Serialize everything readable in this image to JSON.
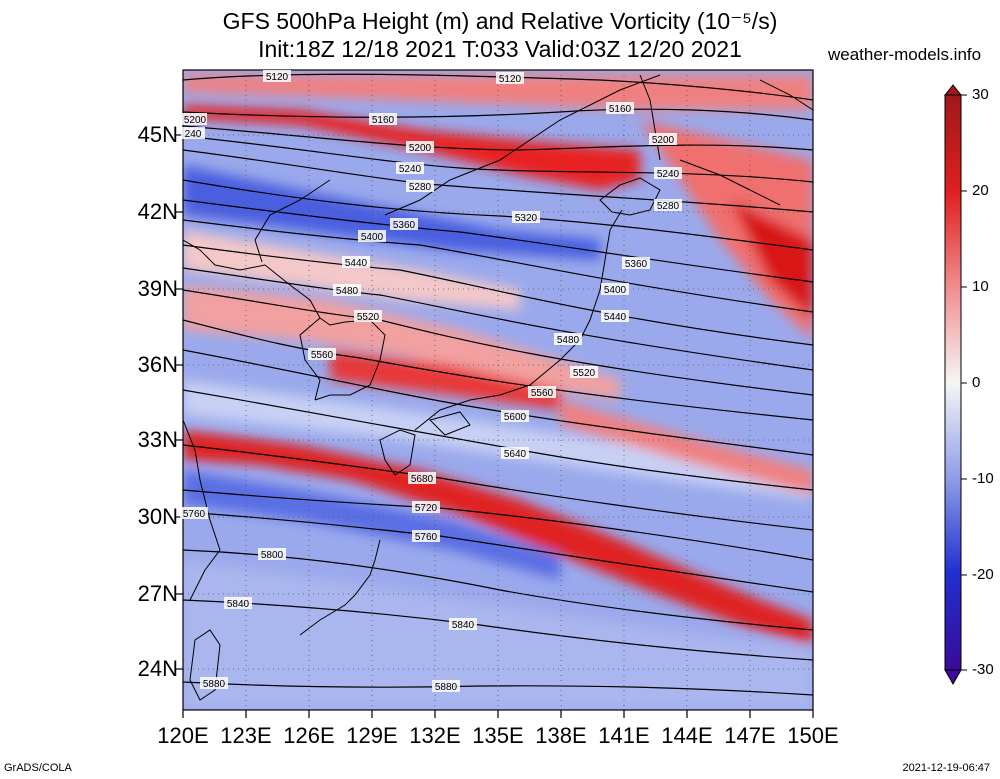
{
  "title_line1": "GFS 500hPa Height (m) and Relative Vorticity (10⁻⁵/s)",
  "title_line2": "Init:18Z 12/18 2021 T:033 Valid:03Z 12/20 2021",
  "site": "weather-models.info",
  "footer_left": "GrADS/COLA",
  "footer_right": "2021-12-19-06:47",
  "lat_labels": [
    "45N",
    "42N",
    "39N",
    "36N",
    "33N",
    "30N",
    "27N",
    "24N"
  ],
  "lon_labels": [
    "120E",
    "123E",
    "126E",
    "129E",
    "132E",
    "135E",
    "138E",
    "141E",
    "144E",
    "147E",
    "150E"
  ],
  "colorbar_labels": [
    "30",
    "20",
    "10",
    "0",
    "-10",
    "-20",
    "-30"
  ],
  "colors": {
    "positive": "#e8201c",
    "strong_positive": "#c01010",
    "negative": "#3050d8",
    "strong_negative": "#3a0a9a",
    "neutral": "#f4f4f4"
  },
  "contour_labels": {
    "c5120": "5120",
    "c5120b": "5120",
    "c5160": "5160",
    "c5160b": "5160",
    "c5200": "5200",
    "c5200b": "5200",
    "c5200c": "5200",
    "c5240": "240",
    "c5240b": "5240",
    "c5240c": "5240",
    "c5280": "5280",
    "c5280b": "5280",
    "c5320": "5320",
    "c5360": "5360",
    "c5360b": "5360",
    "c5400": "5400",
    "c5400b": "5400",
    "c5400c": "5440",
    "c5440": "5440",
    "c5480": "5480",
    "c5480b": "5480",
    "c5520": "5520",
    "c5520b": "5520",
    "c5560": "5560",
    "c5560b": "5560",
    "c5600": "5600",
    "c5640": "5640",
    "c5680": "5680",
    "c5720": "5720",
    "c5760": "5760",
    "c5760b": "5760",
    "c5800": "5800",
    "c5840": "5840",
    "c5840b": "5840",
    "c5880": "5880",
    "c5880b": "5880"
  }
}
